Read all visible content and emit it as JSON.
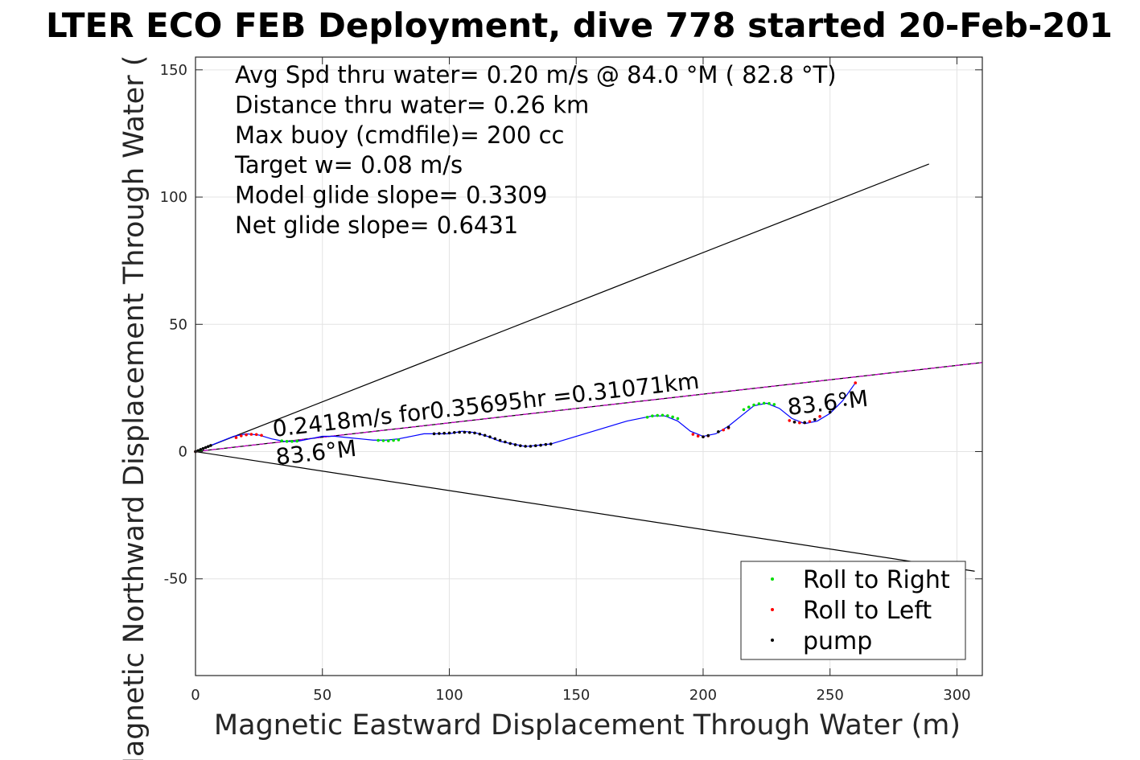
{
  "chart_data": {
    "type": "line",
    "title": "LTER ECO FEB Deployment, dive 778 started 20-Feb-201",
    "xlabel": "Magnetic Eastward Displacement Through Water (m)",
    "ylabel": "Magnetic Northward Displacement Through Water (",
    "xlim": [
      0,
      310
    ],
    "ylim": [
      -88,
      155
    ],
    "xticks": [
      0,
      50,
      100,
      150,
      200,
      250,
      300
    ],
    "yticks": [
      -50,
      0,
      50,
      100,
      150
    ],
    "grid": true,
    "stats_text": [
      "Avg Spd thru water=  0.20 m/s @  84.0 °M ( 82.8 °T)",
      "Distance thru water=  0.26 km",
      "Max buoy (cmdfile)= 200 cc",
      "Target w= 0.08 m/s",
      "Model glide slope= 0.3309",
      "Net glide slope= 0.6431"
    ],
    "annotations": {
      "speed_label": "0.2418m/s for0.35695hr =0.31071km",
      "heading_start": "83.6°M",
      "heading_end": "83.6°M"
    },
    "guide_lines": [
      {
        "x": [
          0,
          289
        ],
        "y": [
          0,
          113
        ]
      },
      {
        "x": [
          0,
          307
        ],
        "y": [
          0,
          -47
        ]
      },
      {
        "x": [
          0,
          310
        ],
        "y": [
          0,
          35
        ]
      }
    ],
    "track": {
      "x": [
        0,
        5,
        10,
        15,
        20,
        25,
        30,
        35,
        40,
        45,
        50,
        55,
        60,
        65,
        70,
        75,
        80,
        85,
        90,
        95,
        100,
        105,
        110,
        115,
        120,
        125,
        130,
        135,
        140,
        150,
        160,
        170,
        180,
        185,
        190,
        195,
        200,
        205,
        210,
        215,
        220,
        225,
        230,
        235,
        240,
        245,
        250,
        255,
        260
      ],
      "y": [
        0,
        2,
        4,
        6,
        7,
        6.5,
        5,
        4,
        4,
        5,
        6,
        6,
        5.5,
        5,
        4.5,
        4.5,
        5,
        6,
        7,
        7,
        7,
        8,
        7.5,
        6,
        4,
        3,
        2,
        2.5,
        3,
        6,
        9,
        12,
        14,
        14,
        12,
        8,
        6,
        7,
        10,
        14,
        18,
        19,
        17,
        13,
        11,
        12,
        15,
        20,
        27
      ]
    },
    "series": [
      {
        "name": "Roll to Right",
        "color": "#00dd00",
        "x": [
          2,
          34,
          36,
          38,
          40,
          72,
          74,
          76,
          78,
          80,
          178,
          180,
          182,
          184,
          186,
          188,
          190,
          216,
          218,
          220,
          222,
          224,
          226,
          228
        ],
        "y": [
          0.5,
          4.2,
          4.0,
          4.0,
          4.1,
          4.4,
          4.3,
          4.2,
          4.4,
          4.6,
          13.5,
          14.0,
          14.2,
          14.3,
          14.1,
          13.6,
          13.0,
          16.5,
          17.5,
          18.3,
          18.8,
          19.0,
          18.9,
          18.5
        ]
      },
      {
        "name": "Roll to Left",
        "color": "#ff0000",
        "x": [
          0,
          16,
          18,
          20,
          22,
          24,
          26,
          196,
          198,
          200,
          202,
          208,
          210,
          234,
          236,
          238,
          240,
          242,
          244,
          246,
          260
        ],
        "y": [
          0,
          5.5,
          6.2,
          6.6,
          6.8,
          6.7,
          6.4,
          6.8,
          6.1,
          5.8,
          6.2,
          8.5,
          9.3,
          12.2,
          11.6,
          11.3,
          11.4,
          11.8,
          12.6,
          13.8,
          27
        ]
      },
      {
        "name": "pump",
        "color": "#000000",
        "x": [
          0,
          1,
          2,
          3,
          4,
          5,
          6,
          94,
          96,
          98,
          100,
          102,
          104,
          106,
          108,
          110,
          112,
          114,
          116,
          118,
          120,
          122,
          124,
          126,
          128,
          130,
          132,
          134,
          136,
          138,
          140,
          200,
          202,
          206,
          210,
          236,
          240,
          244,
          250,
          256
        ],
        "y": [
          0,
          0.4,
          0.8,
          1.2,
          1.6,
          2.0,
          2.4,
          7.0,
          7.1,
          7.2,
          7.3,
          7.5,
          7.6,
          7.6,
          7.5,
          7.3,
          6.9,
          6.4,
          5.8,
          5.1,
          4.4,
          3.8,
          3.2,
          2.7,
          2.3,
          2.1,
          2.1,
          2.3,
          2.5,
          2.8,
          3.0,
          5.8,
          6.3,
          7.8,
          9.6,
          11.6,
          11.4,
          12.6,
          15.5,
          18.5
        ]
      }
    ],
    "legend": {
      "placement": "bottom-right",
      "items": [
        "Roll to Right",
        "Roll to Left",
        "pump"
      ]
    }
  }
}
